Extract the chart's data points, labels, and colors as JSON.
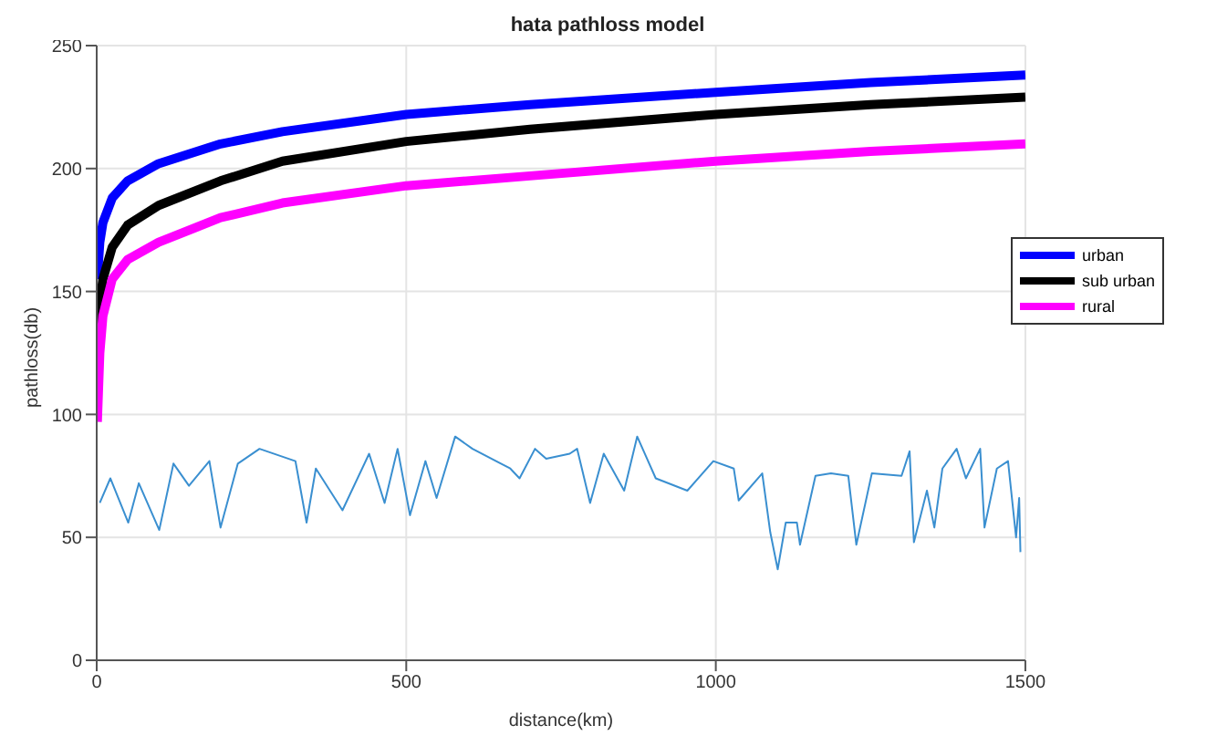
{
  "chart_data": {
    "type": "line",
    "title": "hata pathloss model",
    "xlabel": "distance(km)",
    "ylabel": "pathloss(db)",
    "xlim": [
      0,
      1500
    ],
    "xticks": [
      0,
      500,
      1000,
      1500
    ],
    "ylim": [
      0,
      250
    ],
    "yticks": [
      0,
      50,
      100,
      150,
      200,
      250
    ],
    "grid": true,
    "legend": "top right",
    "marker": "none",
    "line_style": "solid",
    "series": [
      {
        "name": "urban",
        "color": "#0000ff",
        "x": [
          1,
          5,
          10,
          25,
          50,
          100,
          200,
          300,
          500,
          700,
          1000,
          1250,
          1500
        ],
        "values": [
          155,
          170,
          178,
          188,
          195,
          202,
          210,
          215,
          222,
          226,
          231,
          235,
          238
        ]
      },
      {
        "name": "sub urban",
        "color": "#000000",
        "x": [
          1,
          5,
          10,
          25,
          50,
          100,
          200,
          300,
          500,
          700,
          1000,
          1250,
          1500
        ],
        "values": [
          125,
          145,
          155,
          168,
          177,
          185,
          195,
          203,
          211,
          216,
          222,
          226,
          229
        ]
      },
      {
        "name": "rural",
        "color": "#ff00ff",
        "x": [
          1,
          5,
          10,
          25,
          50,
          100,
          200,
          300,
          500,
          700,
          1000,
          1250,
          1500
        ],
        "values": [
          97,
          125,
          140,
          155,
          163,
          170,
          180,
          186,
          193,
          197,
          203,
          207,
          210
        ]
      },
      {
        "color": "#3a8fd0",
        "x": [
          5,
          22,
          51,
          68,
          101,
          124,
          149,
          182,
          200,
          228,
          263,
          321,
          339,
          354,
          397,
          440,
          465,
          486,
          506,
          531,
          549,
          579,
          607,
          668,
          683,
          708,
          726,
          764,
          776,
          797,
          819,
          852,
          873,
          903,
          954,
          996,
          1029,
          1037,
          1075,
          1088,
          1100,
          1113,
          1131,
          1136,
          1161,
          1186,
          1214,
          1227,
          1252,
          1300,
          1313,
          1320,
          1341,
          1353,
          1366,
          1389,
          1404,
          1427,
          1434,
          1454,
          1472,
          1485,
          1490,
          1492
        ],
        "values": [
          64,
          74,
          56,
          72,
          53,
          80,
          71,
          81,
          54,
          80,
          86,
          81,
          56,
          78,
          61,
          84,
          64,
          86,
          59,
          81,
          66,
          91,
          86,
          78,
          74,
          86,
          82,
          84,
          86,
          64,
          84,
          69,
          91,
          74,
          69,
          81,
          78,
          65,
          76,
          52,
          37,
          56,
          56,
          47,
          75,
          76,
          75,
          47,
          76,
          75,
          85,
          48,
          69,
          54,
          78,
          86,
          74,
          86,
          54,
          78,
          81,
          50,
          66,
          44
        ]
      }
    ]
  }
}
